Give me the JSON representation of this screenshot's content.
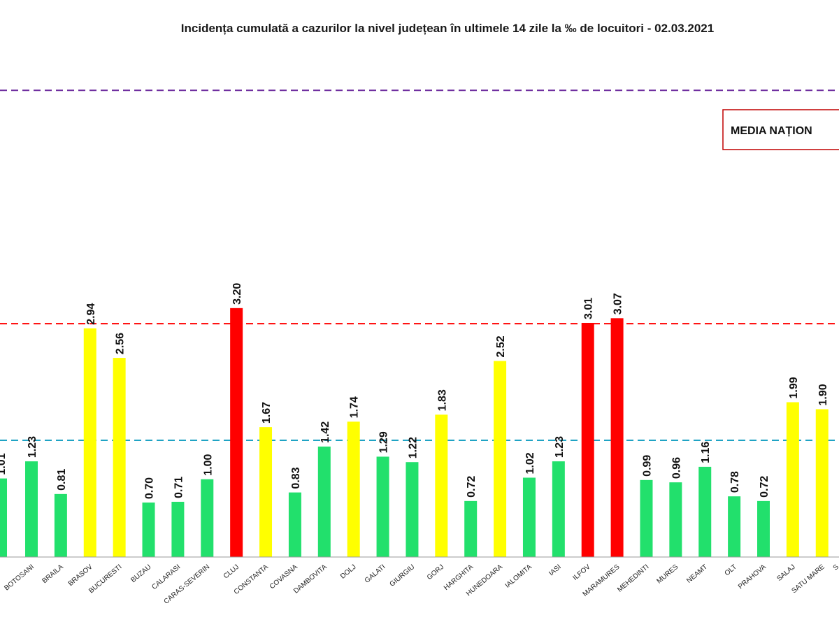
{
  "chart_data": {
    "type": "bar",
    "title": "Incidența cumulată a cazurilor la nivel județean în ultimele 14 zile la ‰ de locuitori - 02.03.2021",
    "categories": [
      "BOTOSANI",
      "BRAILA",
      "BRASOV",
      "BUCURESTI",
      "BUZAU",
      "CALARASI",
      "CARAS-SEVERIN",
      "CLUJ",
      "CONSTANTA",
      "COVASNA",
      "DAMBOVITA",
      "DOLJ",
      "GALATI",
      "GIURGIU",
      "GORJ",
      "HARGHITA",
      "HUNEDOARA",
      "IALOMITA",
      "IASI",
      "ILFOV",
      "MARAMURES",
      "MEHEDINTI",
      "MURES",
      "NEAMT",
      "OLT",
      "PRAHOVA",
      "SALAJ",
      "SATU MARE"
    ],
    "values": [
      1.23,
      0.81,
      2.94,
      2.56,
      0.7,
      0.71,
      1.0,
      3.2,
      1.67,
      0.83,
      1.42,
      1.74,
      1.29,
      1.22,
      1.83,
      0.72,
      2.52,
      1.02,
      1.23,
      3.01,
      3.07,
      0.99,
      0.96,
      1.16,
      0.78,
      0.72,
      1.99,
      1.9
    ],
    "value_labels": [
      "1.23",
      "0.81",
      "2.94",
      "2.56",
      "0.70",
      "0.71",
      "1.00",
      "3.20",
      "1.67",
      "0.83",
      "1.42",
      "1.74",
      "1.29",
      "1.22",
      "1.83",
      "0.72",
      "2.52",
      "1.02",
      "1.23",
      "3.01",
      "3.07",
      "0.99",
      "0.96",
      "1.16",
      "0.78",
      "0.72",
      "1.99",
      "1.90"
    ],
    "bar_colors": [
      "#22e06c",
      "#22e06c",
      "#ffff00",
      "#ffff00",
      "#22e06c",
      "#22e06c",
      "#22e06c",
      "#ff0000",
      "#ffff00",
      "#22e06c",
      "#22e06c",
      "#ffff00",
      "#22e06c",
      "#22e06c",
      "#ffff00",
      "#22e06c",
      "#ffff00",
      "#22e06c",
      "#22e06c",
      "#ff0000",
      "#ff0000",
      "#22e06c",
      "#22e06c",
      "#22e06c",
      "#22e06c",
      "#22e06c",
      "#ffff00",
      "#ffff00"
    ],
    "partial_left_bar": {
      "value": 1.01,
      "label": "1.01",
      "color": "#22e06c"
    },
    "reference_lines": [
      {
        "name": "threshold-6",
        "value": 6.0,
        "color": "#7030a0"
      },
      {
        "name": "threshold-3",
        "value": 3.0,
        "color": "#ff0000"
      },
      {
        "name": "threshold-1.5",
        "value": 1.5,
        "color": "#1fa3c4"
      }
    ],
    "legend": {
      "text": "MEDIA NAȚION",
      "border_color": "#c00000"
    },
    "partial_right_category": "S",
    "ylim": [
      0,
      6.5
    ],
    "grid": false,
    "xlabel": "",
    "ylabel": ""
  }
}
